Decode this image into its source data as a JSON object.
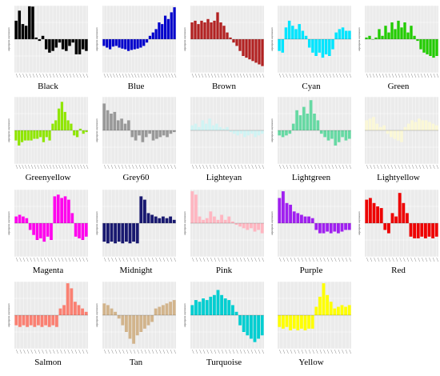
{
  "figure": {
    "background": "#ffffff",
    "plot_background": "#ebebeb",
    "grid_color": "#ffffff"
  },
  "chart_data": [
    {
      "type": "bar",
      "module": "Black",
      "caption": "Black",
      "color": "#000000",
      "ylabel": "eigengene expression",
      "ylim": [
        -1,
        1
      ],
      "values": [
        0.55,
        0.85,
        0.45,
        0.4,
        0.98,
        0.97,
        0.05,
        -0.05,
        0.1,
        -0.3,
        -0.4,
        -0.35,
        -0.25,
        -0.1,
        -0.3,
        -0.35,
        -0.2,
        -0.1,
        -0.45,
        -0.45,
        -0.3,
        -0.35
      ]
    },
    {
      "type": "bar",
      "module": "Blue",
      "caption": "Blue",
      "color": "#0000cc",
      "ylabel": "eigengene expression",
      "ylim": [
        -1,
        1
      ],
      "values": [
        -0.2,
        -0.25,
        -0.3,
        -0.22,
        -0.2,
        -0.25,
        -0.28,
        -0.3,
        -0.35,
        -0.32,
        -0.3,
        -0.28,
        -0.25,
        -0.2,
        -0.1,
        0.1,
        0.2,
        0.3,
        0.5,
        0.45,
        0.7,
        0.6,
        0.8,
        0.95
      ]
    },
    {
      "type": "bar",
      "module": "Brown",
      "caption": "Brown",
      "color": "#b22222",
      "ylabel": "eigengene expression",
      "ylim": [
        -1,
        1
      ],
      "values": [
        0.5,
        0.55,
        0.45,
        0.55,
        0.5,
        0.6,
        0.5,
        0.55,
        0.8,
        0.5,
        0.4,
        0.2,
        0.05,
        -0.1,
        -0.2,
        -0.35,
        -0.5,
        -0.55,
        -0.6,
        -0.65,
        -0.7,
        -0.75,
        -0.8
      ]
    },
    {
      "type": "bar",
      "module": "Cyan",
      "caption": "Cyan",
      "color": "#00e5ff",
      "ylabel": "eigengene expression",
      "ylim": [
        -1,
        1
      ],
      "values": [
        -0.35,
        -0.4,
        0.35,
        0.55,
        0.4,
        0.3,
        0.45,
        0.25,
        0.1,
        -0.25,
        -0.4,
        -0.5,
        -0.4,
        -0.55,
        -0.45,
        -0.5,
        -0.3,
        0.2,
        0.3,
        0.35,
        0.25,
        0.25
      ]
    },
    {
      "type": "bar",
      "module": "Green",
      "caption": "Green",
      "color": "#22cc00",
      "ylabel": "eigengene expression",
      "ylim": [
        -1,
        1
      ],
      "values": [
        0.05,
        0.1,
        0.0,
        0.05,
        0.3,
        0.1,
        0.4,
        0.2,
        0.5,
        0.3,
        0.55,
        0.35,
        0.5,
        0.2,
        0.4,
        0.1,
        -0.05,
        -0.3,
        -0.4,
        -0.45,
        -0.5,
        -0.55,
        -0.5
      ]
    },
    {
      "type": "bar",
      "module": "Greenyellow",
      "caption": "Greenyellow",
      "color": "#8fe600",
      "ylabel": "eigengene expression",
      "ylim": [
        -1,
        1
      ],
      "values": [
        -0.3,
        -0.45,
        -0.35,
        -0.3,
        -0.3,
        -0.3,
        -0.25,
        -0.25,
        -0.2,
        -0.35,
        -0.2,
        -0.3,
        0.2,
        0.3,
        0.65,
        0.85,
        0.55,
        0.3,
        0.2,
        -0.15,
        -0.2,
        0.05,
        -0.1,
        -0.05
      ]
    },
    {
      "type": "bar",
      "module": "Grey60",
      "caption": "Grey60",
      "color": "#999999",
      "ylabel": "eigengene expression",
      "ylim": [
        -1,
        1
      ],
      "values": [
        0.8,
        0.6,
        0.5,
        0.55,
        0.3,
        0.35,
        0.2,
        0.3,
        -0.2,
        -0.3,
        -0.15,
        -0.35,
        -0.2,
        -0.1,
        -0.3,
        -0.25,
        -0.2,
        -0.15,
        -0.2,
        -0.1,
        -0.05
      ]
    },
    {
      "type": "bar",
      "module": "Lighteyan",
      "caption": "Lighteyan",
      "color": "#d0f4f4",
      "ylabel": "",
      "ylim": [
        -1,
        1
      ],
      "values": [
        0.15,
        0.2,
        0.1,
        0.3,
        0.2,
        0.35,
        0.15,
        0.2,
        0.1,
        0.05,
        0.1,
        -0.05,
        -0.1,
        -0.15,
        -0.1,
        -0.2,
        -0.15,
        -0.1,
        -0.2,
        -0.15,
        -0.1
      ]
    },
    {
      "type": "bar",
      "module": "Lightgreen",
      "caption": "Lightgreen",
      "color": "#66d9a3",
      "ylabel": "eigengene expression",
      "ylim": [
        -1,
        1
      ],
      "values": [
        -0.15,
        -0.2,
        -0.15,
        -0.1,
        0.2,
        0.6,
        0.45,
        0.7,
        0.5,
        0.9,
        0.5,
        0.3,
        -0.1,
        -0.2,
        -0.3,
        -0.25,
        -0.45,
        -0.35,
        -0.2,
        -0.3,
        -0.25
      ]
    },
    {
      "type": "bar",
      "module": "Lightyellow",
      "caption": "Lightyellow",
      "color": "#fbf8d7",
      "ylabel": "",
      "ylim": [
        -1,
        1
      ],
      "values": [
        0.3,
        0.35,
        0.4,
        0.2,
        0.1,
        0.15,
        -0.1,
        -0.2,
        -0.25,
        -0.3,
        -0.35,
        0.1,
        0.2,
        0.3,
        0.25,
        0.35,
        0.3,
        0.3,
        0.25,
        0.2,
        0.15
      ]
    },
    {
      "type": "bar",
      "module": "Magenta",
      "caption": "Magenta",
      "color": "#ff00ee",
      "ylabel": "eigengene expression",
      "ylim": [
        -1,
        1
      ],
      "values": [
        0.2,
        0.25,
        0.2,
        0.15,
        -0.2,
        -0.35,
        -0.5,
        -0.45,
        -0.55,
        -0.4,
        -0.5,
        0.8,
        0.85,
        0.75,
        0.8,
        0.7,
        0.3,
        -0.4,
        -0.45,
        -0.5,
        -0.4
      ]
    },
    {
      "type": "bar",
      "module": "Midnight",
      "caption": "Midnight",
      "color": "#191970",
      "ylabel": "eigengene expression",
      "ylim": [
        -1,
        1
      ],
      "values": [
        -0.55,
        -0.6,
        -0.55,
        -0.6,
        -0.55,
        -0.6,
        -0.55,
        -0.6,
        -0.55,
        -0.6,
        0.8,
        0.7,
        0.3,
        0.25,
        0.2,
        0.15,
        0.2,
        0.15,
        0.2,
        0.1
      ]
    },
    {
      "type": "bar",
      "module": "Pink",
      "caption": "Pink",
      "color": "#ffb6c1",
      "ylabel": "eigengene expression",
      "ylim": [
        -1,
        1
      ],
      "values": [
        0.95,
        0.85,
        0.2,
        0.1,
        0.15,
        0.35,
        0.2,
        0.1,
        0.25,
        0.1,
        0.2,
        0.05,
        -0.05,
        -0.1,
        -0.15,
        -0.2,
        -0.15,
        -0.25,
        -0.2,
        -0.3
      ]
    },
    {
      "type": "bar",
      "module": "Purple",
      "caption": "Purple",
      "color": "#a020f0",
      "ylabel": "eigengene expression",
      "ylim": [
        -1,
        1
      ],
      "values": [
        0.75,
        0.95,
        0.6,
        0.55,
        0.35,
        0.3,
        0.25,
        0.2,
        0.2,
        0.15,
        -0.2,
        -0.3,
        -0.3,
        -0.25,
        -0.3,
        -0.25,
        -0.3,
        -0.25,
        -0.2,
        -0.2
      ]
    },
    {
      "type": "bar",
      "module": "Red",
      "caption": "Red",
      "color": "#ee0000",
      "ylabel": "eigengene expression",
      "ylim": [
        -1,
        1
      ],
      "values": [
        0.7,
        0.75,
        0.6,
        0.5,
        0.45,
        -0.2,
        -0.3,
        0.3,
        0.2,
        0.9,
        0.6,
        0.3,
        -0.4,
        -0.45,
        -0.45,
        -0.4,
        -0.45,
        -0.4,
        -0.45,
        -0.4
      ]
    },
    {
      "type": "bar",
      "module": "Salmon",
      "caption": "Salmon",
      "color": "#fa8072",
      "ylabel": "eigengene expression",
      "ylim": [
        -1,
        1
      ],
      "values": [
        -0.3,
        -0.35,
        -0.3,
        -0.35,
        -0.3,
        -0.35,
        -0.3,
        -0.35,
        -0.3,
        -0.35,
        -0.3,
        -0.35,
        0.2,
        0.3,
        0.95,
        0.8,
        0.4,
        0.3,
        0.2,
        0.1
      ]
    },
    {
      "type": "bar",
      "module": "Tan",
      "caption": "Tan",
      "color": "#d2b48c",
      "ylabel": "eigengene expression",
      "ylim": [
        -1,
        1
      ],
      "values": [
        0.35,
        0.3,
        0.2,
        0.1,
        -0.1,
        -0.3,
        -0.5,
        -0.7,
        -0.85,
        -0.6,
        -0.5,
        -0.4,
        -0.3,
        -0.2,
        0.2,
        0.25,
        0.3,
        0.35,
        0.4,
        0.45
      ]
    },
    {
      "type": "bar",
      "module": "Turquoise",
      "caption": "Turquoise",
      "color": "#00ced1",
      "ylabel": "eigengene expression",
      "ylim": [
        -1,
        1
      ],
      "values": [
        0.3,
        0.45,
        0.4,
        0.5,
        0.45,
        0.55,
        0.6,
        0.75,
        0.6,
        0.5,
        0.45,
        0.3,
        0.1,
        -0.3,
        -0.5,
        -0.6,
        -0.7,
        -0.8,
        -0.7,
        -0.6
      ]
    },
    {
      "type": "bar",
      "module": "Yellow",
      "caption": "Yellow",
      "color": "#ffff00",
      "ylabel": "",
      "ylim": [
        -1,
        1
      ],
      "values": [
        -0.35,
        -0.4,
        -0.35,
        -0.45,
        -0.4,
        -0.45,
        -0.4,
        -0.45,
        -0.4,
        -0.4,
        0.25,
        0.55,
        0.95,
        0.6,
        0.4,
        0.2,
        0.25,
        0.3,
        0.25,
        0.3
      ]
    }
  ]
}
